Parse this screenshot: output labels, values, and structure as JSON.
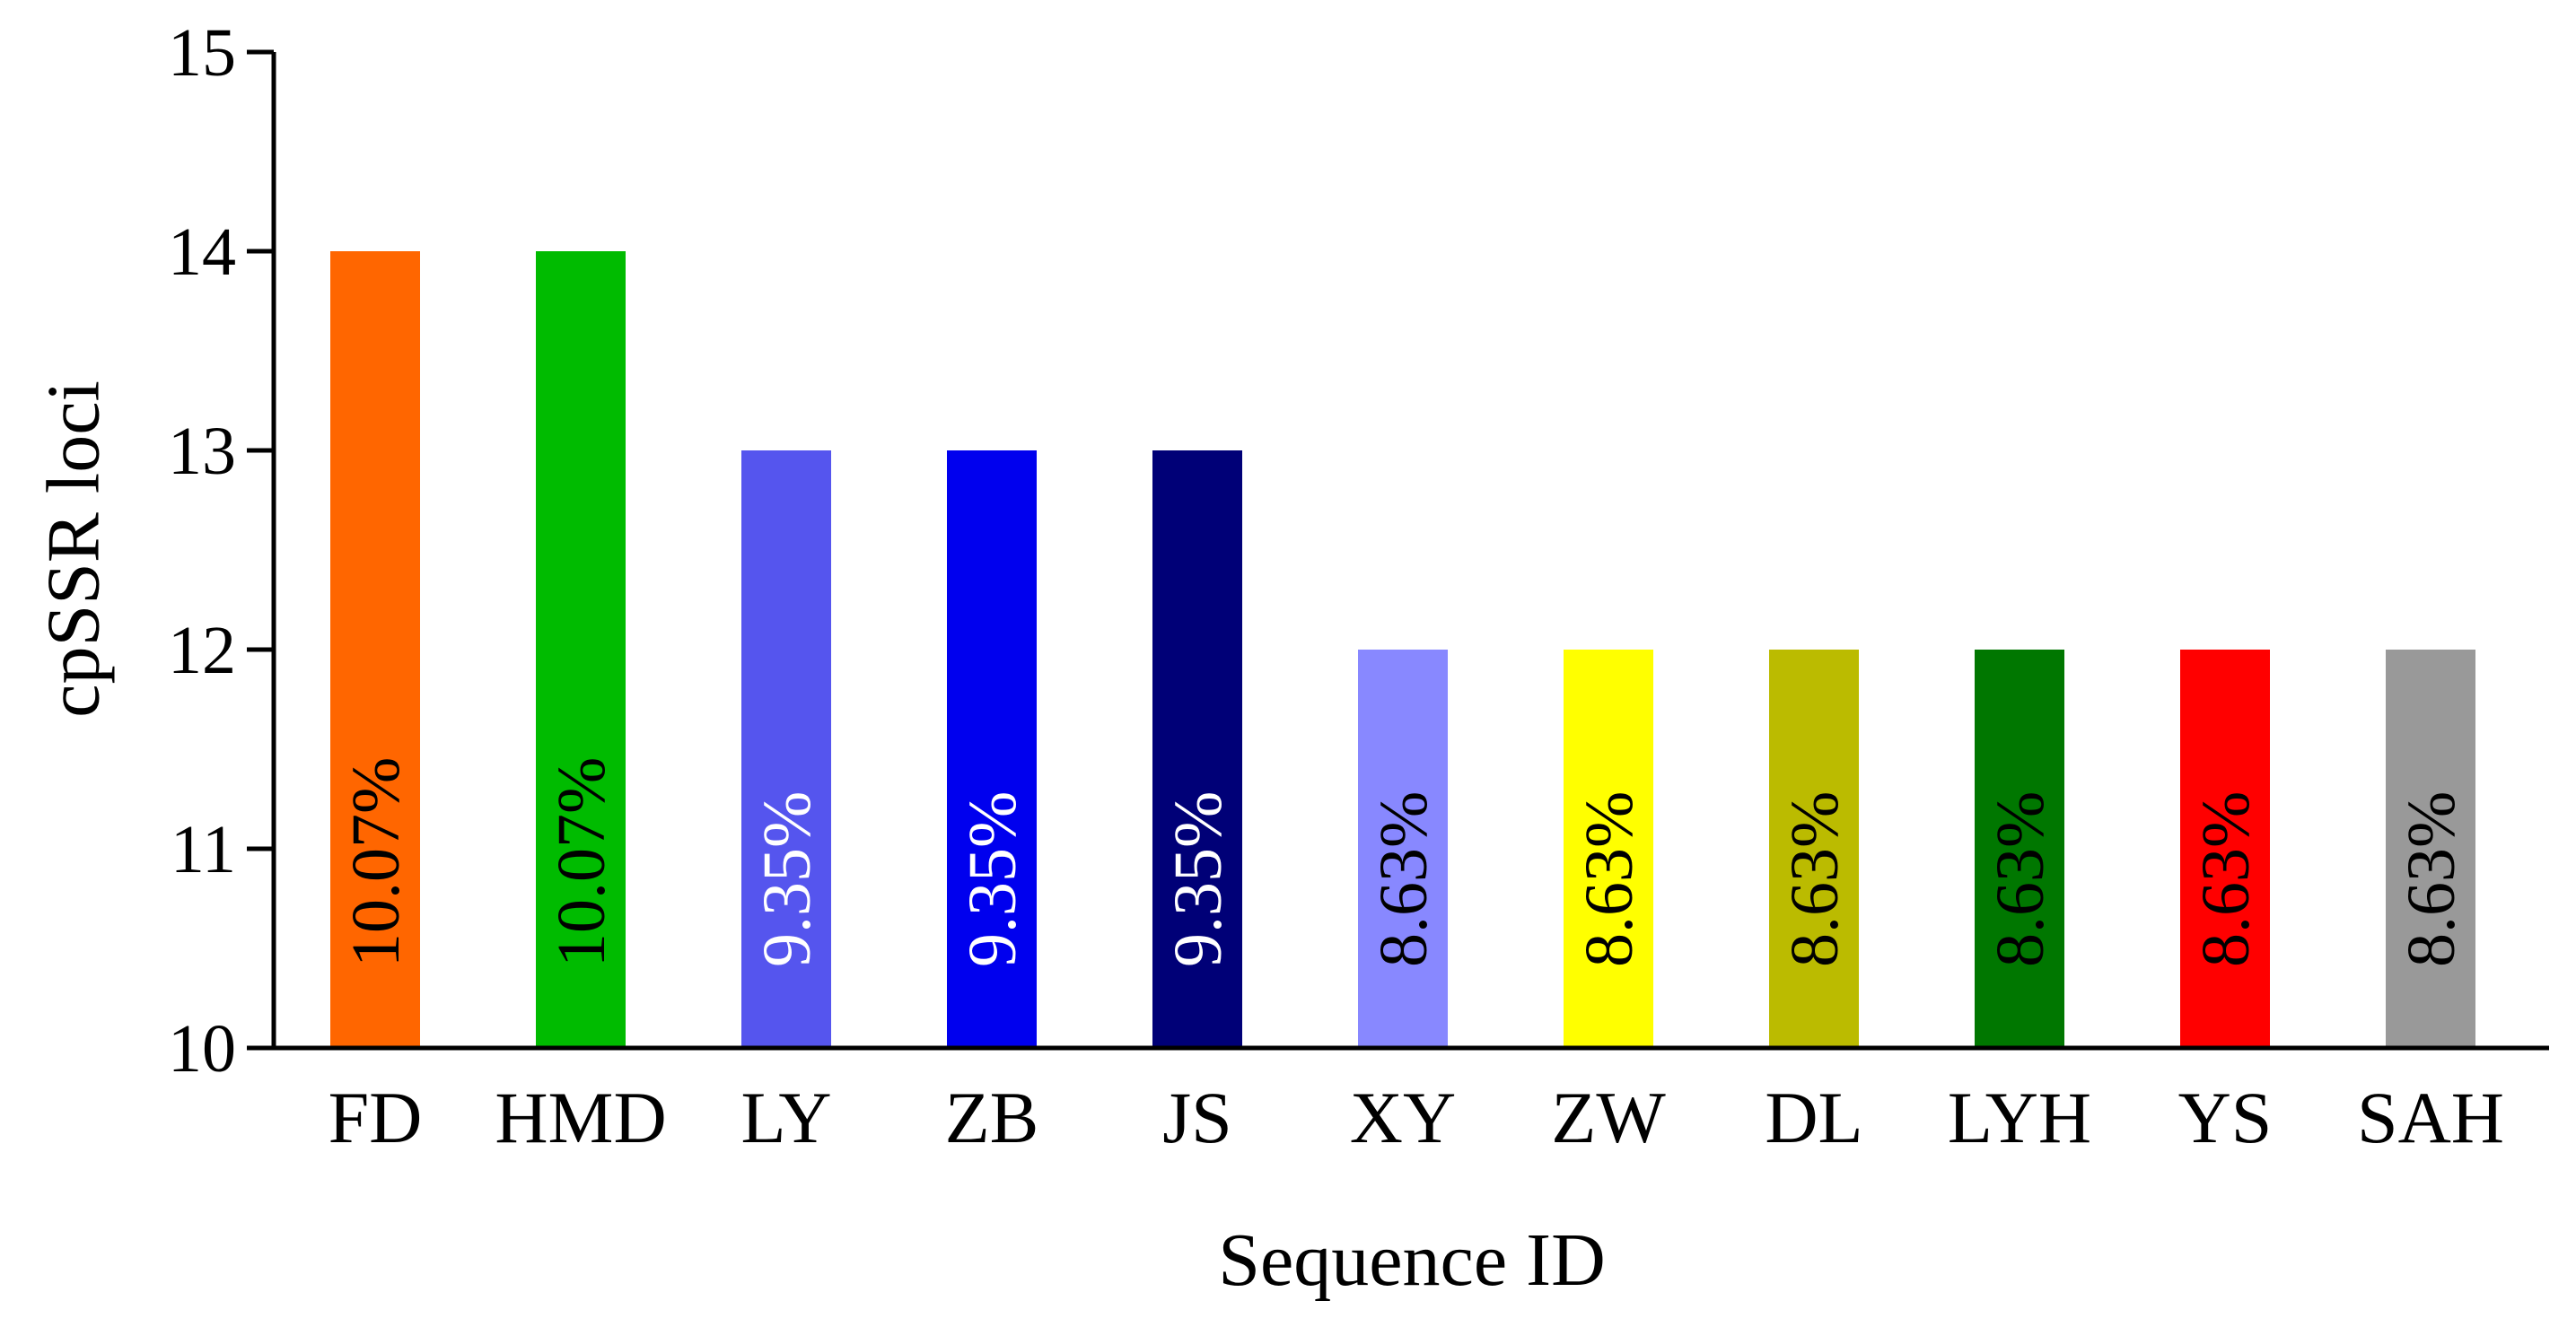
{
  "chart_data": {
    "type": "bar",
    "title": "",
    "xlabel": "Sequence ID",
    "ylabel": "cpSSR loci",
    "ylim": [
      10,
      15
    ],
    "yticks": [
      10,
      11,
      12,
      13,
      14,
      15
    ],
    "categories": [
      "FD",
      "HMD",
      "LY",
      "ZB",
      "JS",
      "XY",
      "ZW",
      "DL",
      "LYH",
      "YS",
      "SAH"
    ],
    "values": [
      14,
      14,
      13,
      13,
      13,
      12,
      12,
      12,
      12,
      12,
      12
    ],
    "data_labels": [
      "10.07%",
      "10.07%",
      "9.35%",
      "9.35%",
      "9.35%",
      "8.63%",
      "8.63%",
      "8.63%",
      "8.63%",
      "8.63%",
      "8.63%"
    ],
    "bar_colors": [
      "#ff6600",
      "#00bb00",
      "#5555ee",
      "#0000ee",
      "#000077",
      "#8888ff",
      "#ffff00",
      "#bbbb00",
      "#007700",
      "#ff0000",
      "#999999"
    ],
    "label_colors": [
      "#000000",
      "#000000",
      "#ffffff",
      "#ffffff",
      "#ffffff",
      "#000000",
      "#000000",
      "#000000",
      "#000000",
      "#000000",
      "#000000"
    ],
    "grid": false
  }
}
